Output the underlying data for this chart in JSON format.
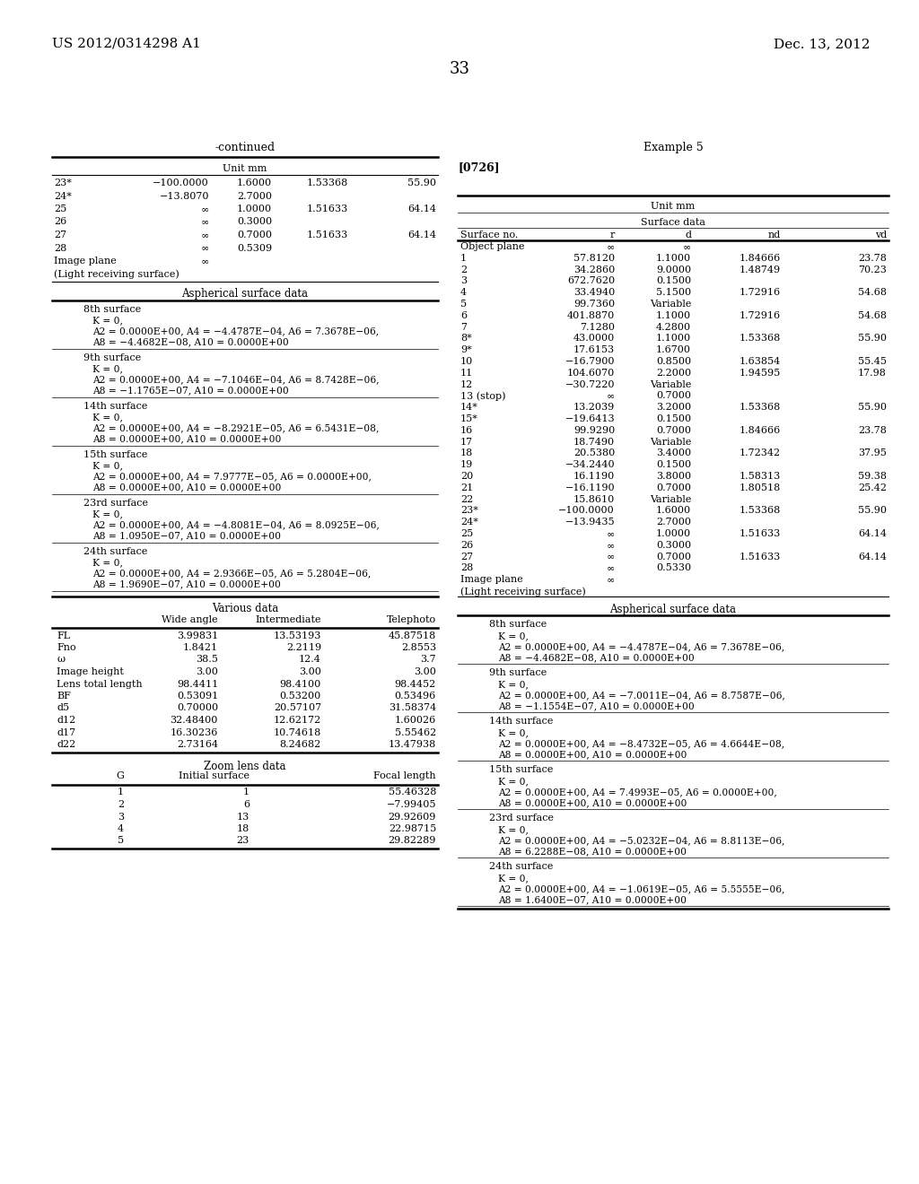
{
  "header_left": "US 2012/0314298 A1",
  "header_right": "Dec. 13, 2012",
  "page_number": "33",
  "left_column": {
    "continued_title": "-continued",
    "unit_mm": "Unit mm",
    "surface_table": {
      "rows": [
        [
          "23*",
          "−100.0000",
          "1.6000",
          "1.53368",
          "55.90"
        ],
        [
          "24*",
          "−13.8070",
          "2.7000",
          "",
          ""
        ],
        [
          "25",
          "∞",
          "1.0000",
          "1.51633",
          "64.14"
        ],
        [
          "26",
          "∞",
          "0.3000",
          "",
          ""
        ],
        [
          "27",
          "∞",
          "0.7000",
          "1.51633",
          "64.14"
        ],
        [
          "28",
          "∞",
          "0.5309",
          "",
          ""
        ]
      ],
      "image_plane": [
        "Image plane",
        "∞",
        "",
        "",
        ""
      ],
      "light_receiving": [
        "(Light receiving surface)",
        "",
        "",
        "",
        ""
      ]
    },
    "aspherical_title": "Aspherical surface data",
    "aspherical_data": [
      {
        "surface": "8th surface",
        "lines": [
          "K = 0,",
          "A2 = 0.0000E+00, A4 = −4.4787E−04, A6 = 7.3678E−06,",
          "A8 = −4.4682E−08, A10 = 0.0000E+00"
        ]
      },
      {
        "surface": "9th surface",
        "lines": [
          "K = 0,",
          "A2 = 0.0000E+00, A4 = −7.1046E−04, A6 = 8.7428E−06,",
          "A8 = −1.1765E−07, A10 = 0.0000E+00"
        ]
      },
      {
        "surface": "14th surface",
        "lines": [
          "K = 0,",
          "A2 = 0.0000E+00, A4 = −8.2921E−05, A6 = 6.5431E−08,",
          "A8 = 0.0000E+00, A10 = 0.0000E+00"
        ]
      },
      {
        "surface": "15th surface",
        "lines": [
          "K = 0,",
          "A2 = 0.0000E+00, A4 = 7.9777E−05, A6 = 0.0000E+00,",
          "A8 = 0.0000E+00, A10 = 0.0000E+00"
        ]
      },
      {
        "surface": "23rd surface",
        "lines": [
          "K = 0,",
          "A2 = 0.0000E+00, A4 = −4.8081E−04, A6 = 8.0925E−06,",
          "A8 = 1.0950E−07, A10 = 0.0000E+00"
        ]
      },
      {
        "surface": "24th surface",
        "lines": [
          "K = 0,",
          "A2 = 0.0000E+00, A4 = 2.9366E−05, A6 = 5.2804E−06,",
          "A8 = 1.9690E−07, A10 = 0.0000E+00"
        ]
      }
    ],
    "various_data": {
      "title": "Various data",
      "headers": [
        "",
        "Wide angle",
        "Intermediate",
        "Telephoto"
      ],
      "rows": [
        [
          "FL",
          "3.99831",
          "13.53193",
          "45.87518"
        ],
        [
          "Fno",
          "1.8421",
          "2.2119",
          "2.8553"
        ],
        [
          "ω",
          "38.5",
          "12.4",
          "3.7"
        ],
        [
          "Image height",
          "3.00",
          "3.00",
          "3.00"
        ],
        [
          "Lens total length",
          "98.4411",
          "98.4100",
          "98.4452"
        ],
        [
          "BF",
          "0.53091",
          "0.53200",
          "0.53496"
        ],
        [
          "d5",
          "0.70000",
          "20.57107",
          "31.58374"
        ],
        [
          "d12",
          "32.48400",
          "12.62172",
          "1.60026"
        ],
        [
          "d17",
          "16.30236",
          "10.74618",
          "5.55462"
        ],
        [
          "d22",
          "2.73164",
          "8.24682",
          "13.47938"
        ]
      ]
    },
    "zoom_lens_data": {
      "title": "Zoom lens data",
      "headers": [
        "G",
        "Initial surface",
        "Focal length"
      ],
      "rows": [
        [
          "1",
          "1",
          "55.46328"
        ],
        [
          "2",
          "6",
          "−7.99405"
        ],
        [
          "3",
          "13",
          "29.92609"
        ],
        [
          "4",
          "18",
          "22.98715"
        ],
        [
          "5",
          "23",
          "29.82289"
        ]
      ]
    }
  },
  "right_column": {
    "example_title": "Example 5",
    "paragraph_ref": "[0726]",
    "unit_mm": "Unit mm",
    "surface_data_title": "Surface data",
    "surface_headers": [
      "Surface no.",
      "r",
      "d",
      "nd",
      "vd"
    ],
    "surface_rows": [
      [
        "Object plane",
        "∞",
        "∞",
        "",
        ""
      ],
      [
        "1",
        "57.8120",
        "1.1000",
        "1.84666",
        "23.78"
      ],
      [
        "2",
        "34.2860",
        "9.0000",
        "1.48749",
        "70.23"
      ],
      [
        "3",
        "672.7620",
        "0.1500",
        "",
        ""
      ],
      [
        "4",
        "33.4940",
        "5.1500",
        "1.72916",
        "54.68"
      ],
      [
        "5",
        "99.7360",
        "Variable",
        "",
        ""
      ],
      [
        "6",
        "401.8870",
        "1.1000",
        "1.72916",
        "54.68"
      ],
      [
        "7",
        "7.1280",
        "4.2800",
        "",
        ""
      ],
      [
        "8*",
        "43.0000",
        "1.1000",
        "1.53368",
        "55.90"
      ],
      [
        "9*",
        "17.6153",
        "1.6700",
        "",
        ""
      ],
      [
        "10",
        "−16.7900",
        "0.8500",
        "1.63854",
        "55.45"
      ],
      [
        "11",
        "104.6070",
        "2.2000",
        "1.94595",
        "17.98"
      ],
      [
        "12",
        "−30.7220",
        "Variable",
        "",
        ""
      ],
      [
        "13 (stop)",
        "∞",
        "0.7000",
        "",
        ""
      ],
      [
        "14*",
        "13.2039",
        "3.2000",
        "1.53368",
        "55.90"
      ],
      [
        "15*",
        "−19.6413",
        "0.1500",
        "",
        ""
      ],
      [
        "16",
        "99.9290",
        "0.7000",
        "1.84666",
        "23.78"
      ],
      [
        "17",
        "18.7490",
        "Variable",
        "",
        ""
      ],
      [
        "18",
        "20.5380",
        "3.4000",
        "1.72342",
        "37.95"
      ],
      [
        "19",
        "−34.2440",
        "0.1500",
        "",
        ""
      ],
      [
        "20",
        "16.1190",
        "3.8000",
        "1.58313",
        "59.38"
      ],
      [
        "21",
        "−16.1190",
        "0.7000",
        "1.80518",
        "25.42"
      ],
      [
        "22",
        "15.8610",
        "Variable",
        "",
        ""
      ],
      [
        "23*",
        "−100.0000",
        "1.6000",
        "1.53368",
        "55.90"
      ],
      [
        "24*",
        "−13.9435",
        "2.7000",
        "",
        ""
      ],
      [
        "25",
        "∞",
        "1.0000",
        "1.51633",
        "64.14"
      ],
      [
        "26",
        "∞",
        "0.3000",
        "",
        ""
      ],
      [
        "27",
        "∞",
        "0.7000",
        "1.51633",
        "64.14"
      ],
      [
        "28",
        "∞",
        "0.5330",
        "",
        ""
      ],
      [
        "Image plane",
        "∞",
        "",
        "",
        ""
      ],
      [
        "(Light receiving surface)",
        "",
        "",
        "",
        ""
      ]
    ],
    "aspherical_title": "Aspherical surface data",
    "aspherical_data": [
      {
        "surface": "8th surface",
        "lines": [
          "K = 0,",
          "A2 = 0.0000E+00, A4 = −4.4787E−04, A6 = 7.3678E−06,",
          "A8 = −4.4682E−08, A10 = 0.0000E+00"
        ]
      },
      {
        "surface": "9th surface",
        "lines": [
          "K = 0,",
          "A2 = 0.0000E+00, A4 = −7.0011E−04, A6 = 8.7587E−06,",
          "A8 = −1.1554E−07, A10 = 0.0000E+00"
        ]
      },
      {
        "surface": "14th surface",
        "lines": [
          "K = 0,",
          "A2 = 0.0000E+00, A4 = −8.4732E−05, A6 = 4.6644E−08,",
          "A8 = 0.0000E+00, A10 = 0.0000E+00"
        ]
      },
      {
        "surface": "15th surface",
        "lines": [
          "K = 0,",
          "A2 = 0.0000E+00, A4 = 7.4993E−05, A6 = 0.0000E+00,",
          "A8 = 0.0000E+00, A10 = 0.0000E+00"
        ]
      },
      {
        "surface": "23rd surface",
        "lines": [
          "K = 0,",
          "A2 = 0.0000E+00, A4 = −5.0232E−04, A6 = 8.8113E−06,",
          "A8 = 6.2288E−08, A10 = 0.0000E+00"
        ]
      },
      {
        "surface": "24th surface",
        "lines": [
          "K = 0,",
          "A2 = 0.0000E+00, A4 = −1.0619E−05, A6 = 5.5555E−06,",
          "A8 = 1.6400E−07, A10 = 0.0000E+00"
        ]
      }
    ]
  },
  "bg_color": "#ffffff",
  "text_color": "#000000"
}
